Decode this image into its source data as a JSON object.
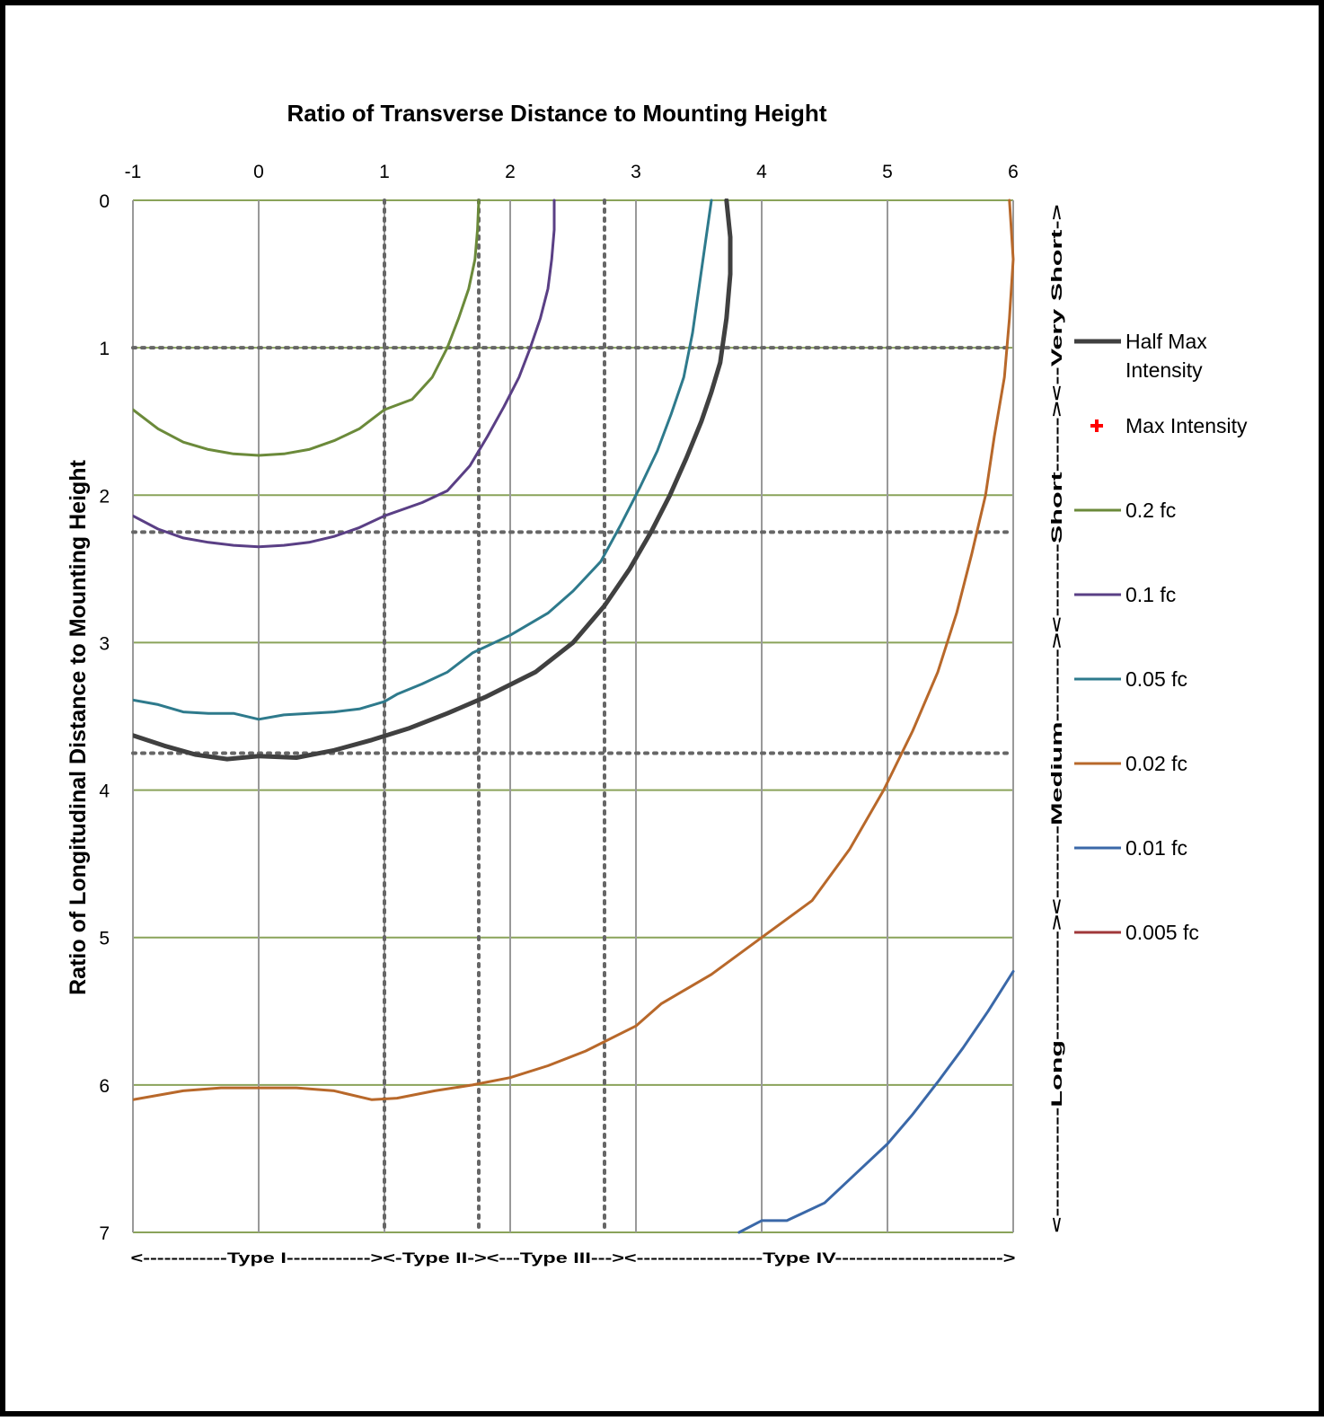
{
  "chart_data": {
    "type": "line",
    "title": "Ratio of Transverse Distance to Mounting Height",
    "xlabel": "",
    "ylabel": "Ratio of Longitudinal Distance to Mounting Height",
    "xlim": [
      -1,
      6
    ],
    "ylim": [
      0,
      7
    ],
    "y_axis_inverted": true,
    "x_axis_position": "top",
    "x_ticks": [
      "-1",
      "0",
      "1",
      "2",
      "3",
      "4",
      "5",
      "6"
    ],
    "y_ticks": [
      "0",
      "1",
      "2",
      "3",
      "4",
      "5",
      "6",
      "7"
    ],
    "grid": true,
    "legend_position": "right",
    "colors": {
      "vertical_grid": "#999999",
      "horizontal_grid": "#8aa35a",
      "dotted_reference": "#666666"
    },
    "reference_lines": {
      "x": [
        1,
        1.75,
        2.75
      ],
      "y": [
        1,
        2.25,
        3.75
      ]
    },
    "series": [
      {
        "name": "Half Max Intensity",
        "color": "#404040",
        "width": 5,
        "points": [
          [
            3.72,
            0
          ],
          [
            3.75,
            0.25
          ],
          [
            3.75,
            0.5
          ],
          [
            3.72,
            0.8
          ],
          [
            3.67,
            1.1
          ],
          [
            3.6,
            1.3
          ],
          [
            3.52,
            1.5
          ],
          [
            3.4,
            1.75
          ],
          [
            3.27,
            2
          ],
          [
            3.12,
            2.25
          ],
          [
            2.95,
            2.5
          ],
          [
            2.75,
            2.75
          ],
          [
            2.5,
            3.0
          ],
          [
            2.2,
            3.2
          ],
          [
            1.8,
            3.37
          ],
          [
            1.5,
            3.48
          ],
          [
            1.2,
            3.58
          ],
          [
            0.9,
            3.66
          ],
          [
            0.6,
            3.73
          ],
          [
            0.3,
            3.78
          ],
          [
            0.0,
            3.77
          ],
          [
            -0.25,
            3.79
          ],
          [
            -0.5,
            3.76
          ],
          [
            -0.75,
            3.7
          ],
          [
            -1,
            3.63
          ]
        ]
      },
      {
        "name": "Max Intensity",
        "color": "#ff0000",
        "marker": "plus",
        "points": []
      },
      {
        "name": "0.2 fc",
        "color": "#6b8a3a",
        "width": 3,
        "points": [
          [
            1.75,
            0
          ],
          [
            1.74,
            0.2
          ],
          [
            1.72,
            0.4
          ],
          [
            1.67,
            0.6
          ],
          [
            1.59,
            0.8
          ],
          [
            1.5,
            1.0
          ],
          [
            1.38,
            1.2
          ],
          [
            1.22,
            1.35
          ],
          [
            1.0,
            1.42
          ],
          [
            0.8,
            1.55
          ],
          [
            0.6,
            1.63
          ],
          [
            0.4,
            1.69
          ],
          [
            0.2,
            1.72
          ],
          [
            0.0,
            1.73
          ],
          [
            -0.2,
            1.72
          ],
          [
            -0.4,
            1.69
          ],
          [
            -0.6,
            1.64
          ],
          [
            -0.8,
            1.55
          ],
          [
            -1,
            1.42
          ]
        ]
      },
      {
        "name": "0.1 fc",
        "color": "#5a3f85",
        "width": 3,
        "points": [
          [
            2.35,
            0
          ],
          [
            2.35,
            0.2
          ],
          [
            2.33,
            0.4
          ],
          [
            2.3,
            0.6
          ],
          [
            2.24,
            0.8
          ],
          [
            2.16,
            1.0
          ],
          [
            2.07,
            1.2
          ],
          [
            1.95,
            1.4
          ],
          [
            1.82,
            1.6
          ],
          [
            1.68,
            1.8
          ],
          [
            1.5,
            1.97
          ],
          [
            1.3,
            2.05
          ],
          [
            1.0,
            2.14
          ],
          [
            0.8,
            2.22
          ],
          [
            0.6,
            2.28
          ],
          [
            0.4,
            2.32
          ],
          [
            0.2,
            2.34
          ],
          [
            0.0,
            2.35
          ],
          [
            -0.2,
            2.34
          ],
          [
            -0.4,
            2.32
          ],
          [
            -0.6,
            2.29
          ],
          [
            -0.8,
            2.23
          ],
          [
            -1,
            2.14
          ]
        ]
      },
      {
        "name": "0.05 fc",
        "color": "#2e7a8c",
        "width": 3,
        "points": [
          [
            3.6,
            0
          ],
          [
            3.55,
            0.3
          ],
          [
            3.5,
            0.6
          ],
          [
            3.45,
            0.9
          ],
          [
            3.38,
            1.2
          ],
          [
            3.28,
            1.45
          ],
          [
            3.17,
            1.7
          ],
          [
            3.03,
            1.95
          ],
          [
            2.88,
            2.2
          ],
          [
            2.72,
            2.45
          ],
          [
            2.5,
            2.65
          ],
          [
            2.3,
            2.8
          ],
          [
            2.0,
            2.95
          ],
          [
            1.7,
            3.07
          ],
          [
            1.5,
            3.2
          ],
          [
            1.3,
            3.28
          ],
          [
            1.1,
            3.35
          ],
          [
            1.0,
            3.4
          ],
          [
            0.8,
            3.45
          ],
          [
            0.6,
            3.47
          ],
          [
            0.4,
            3.48
          ],
          [
            0.2,
            3.49
          ],
          [
            0.0,
            3.52
          ],
          [
            -0.2,
            3.48
          ],
          [
            -0.4,
            3.48
          ],
          [
            -0.6,
            3.47
          ],
          [
            -0.8,
            3.42
          ],
          [
            -1,
            3.39
          ]
        ]
      },
      {
        "name": "0.02 fc",
        "color": "#b8682a",
        "width": 3,
        "points": [
          [
            5.97,
            0
          ],
          [
            6.0,
            0.4
          ],
          [
            5.97,
            0.8
          ],
          [
            5.93,
            1.2
          ],
          [
            5.85,
            1.6
          ],
          [
            5.78,
            2.0
          ],
          [
            5.67,
            2.4
          ],
          [
            5.55,
            2.8
          ],
          [
            5.4,
            3.2
          ],
          [
            5.2,
            3.6
          ],
          [
            4.97,
            4.0
          ],
          [
            4.7,
            4.4
          ],
          [
            4.4,
            4.75
          ],
          [
            4.0,
            5.0
          ],
          [
            3.6,
            5.25
          ],
          [
            3.2,
            5.45
          ],
          [
            3.0,
            5.6
          ],
          [
            2.6,
            5.77
          ],
          [
            2.3,
            5.87
          ],
          [
            2.0,
            5.95
          ],
          [
            1.7,
            6.0
          ],
          [
            1.4,
            6.04
          ],
          [
            1.1,
            6.09
          ],
          [
            0.9,
            6.1
          ],
          [
            0.6,
            6.04
          ],
          [
            0.3,
            6.02
          ],
          [
            0.0,
            6.02
          ],
          [
            -0.3,
            6.02
          ],
          [
            -0.6,
            6.04
          ],
          [
            -1,
            6.1
          ]
        ]
      },
      {
        "name": "0.01 fc",
        "color": "#3a68a8",
        "width": 3,
        "points": [
          [
            6.0,
            5.23
          ],
          [
            5.8,
            5.5
          ],
          [
            5.6,
            5.75
          ],
          [
            5.4,
            5.98
          ],
          [
            5.2,
            6.2
          ],
          [
            5.0,
            6.4
          ],
          [
            4.75,
            6.6
          ],
          [
            4.5,
            6.8
          ],
          [
            4.2,
            6.92
          ],
          [
            4.0,
            6.92
          ],
          [
            3.82,
            7.0
          ]
        ]
      },
      {
        "name": "0.005 fc",
        "color": "#a0383a",
        "width": 3,
        "points": []
      }
    ]
  },
  "right_axis_text": "<------------Long------------><--------Medium--------><--------Short------><--Very Short->",
  "bottom_axis_text": "<------------Type I------------><-Type II-><---Type III---><------------------Type IV------------------------>"
}
